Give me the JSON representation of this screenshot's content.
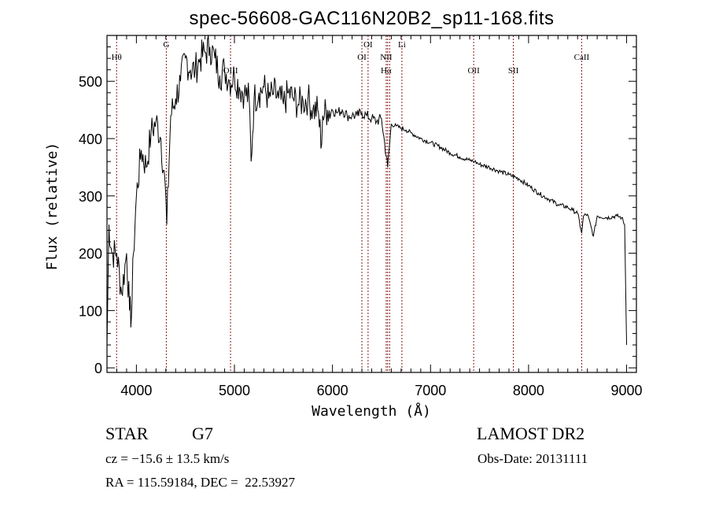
{
  "chart_data": {
    "type": "line",
    "title": "spec-56608-GAC116N20B2_sp11-168.fits",
    "xlabel": "Wavelength (Å)",
    "ylabel": "Flux (relative)",
    "xlim": [
      3700,
      9100
    ],
    "ylim": [
      -8,
      580
    ],
    "grid": false,
    "xticks": [
      4000,
      5000,
      6000,
      7000,
      8000,
      9000
    ],
    "yticks": [
      0,
      100,
      200,
      300,
      400,
      500
    ],
    "series": [
      {
        "name": "spectrum",
        "x": [
          3700,
          3720,
          3750,
          3800,
          3850,
          3900,
          3930,
          3950,
          3970,
          4000,
          4050,
          4100,
          4150,
          4200,
          4250,
          4300,
          4310,
          4350,
          4400,
          4450,
          4500,
          4550,
          4600,
          4650,
          4700,
          4750,
          4800,
          4850,
          4900,
          4950,
          5000,
          5050,
          5100,
          5150,
          5170,
          5200,
          5250,
          5300,
          5350,
          5400,
          5450,
          5500,
          5550,
          5600,
          5650,
          5700,
          5750,
          5800,
          5850,
          5890,
          5900,
          5950,
          6000,
          6050,
          6100,
          6150,
          6200,
          6250,
          6300,
          6350,
          6400,
          6450,
          6500,
          6563,
          6600,
          6650,
          6700,
          6750,
          6800,
          6900,
          7000,
          7100,
          7200,
          7300,
          7400,
          7450,
          7500,
          7600,
          7700,
          7800,
          7900,
          8000,
          8100,
          8200,
          8300,
          8400,
          8450,
          8500,
          8542,
          8560,
          8600,
          8662,
          8700,
          8800,
          8900,
          8950,
          8980,
          9000
        ],
        "y": [
          40,
          250,
          200,
          200,
          130,
          200,
          100,
          90,
          200,
          300,
          380,
          350,
          410,
          430,
          400,
          300,
          250,
          440,
          470,
          500,
          540,
          520,
          520,
          540,
          550,
          560,
          540,
          510,
          520,
          500,
          510,
          490,
          480,
          470,
          360,
          470,
          480,
          490,
          470,
          480,
          470,
          460,
          480,
          470,
          460,
          465,
          470,
          450,
          450,
          390,
          440,
          450,
          450,
          445,
          450,
          440,
          440,
          440,
          445,
          440,
          435,
          430,
          435,
          350,
          425,
          422,
          418,
          415,
          410,
          400,
          393,
          385,
          375,
          368,
          362,
          360,
          355,
          350,
          343,
          337,
          330,
          318,
          305,
          295,
          285,
          280,
          275,
          270,
          235,
          265,
          268,
          230,
          265,
          262,
          265,
          262,
          250,
          40
        ]
      }
    ],
    "lines": [
      {
        "label": "Hθ",
        "wavelength": 3798
      },
      {
        "label": "G",
        "wavelength": 4305
      },
      {
        "label": "OIII",
        "wavelength": 4960
      },
      {
        "label": "OI",
        "wavelength": 6300
      },
      {
        "label": "OI",
        "wavelength": 6363
      },
      {
        "label": "NII",
        "wavelength": 6548
      },
      {
        "label": "Hα",
        "wavelength": 6563
      },
      {
        "label": "NII",
        "wavelength": 6583
      },
      {
        "label": "Li",
        "wavelength": 6708
      },
      {
        "label": "OII",
        "wavelength": 7440
      },
      {
        "label": "SII",
        "wavelength": 7845
      },
      {
        "label": "CaII",
        "wavelength": 8542
      }
    ]
  },
  "info": {
    "class": "STAR",
    "subclass": "G7",
    "survey": "LAMOST DR2",
    "cz": "cz = −15.6 ± 13.5 km/s",
    "obs_date": "Obs-Date: 20131111",
    "coords": "RA = 115.59184, DEC =  22.53927"
  },
  "colors": {
    "line": "#000000",
    "marker": "#8b1a1a"
  }
}
